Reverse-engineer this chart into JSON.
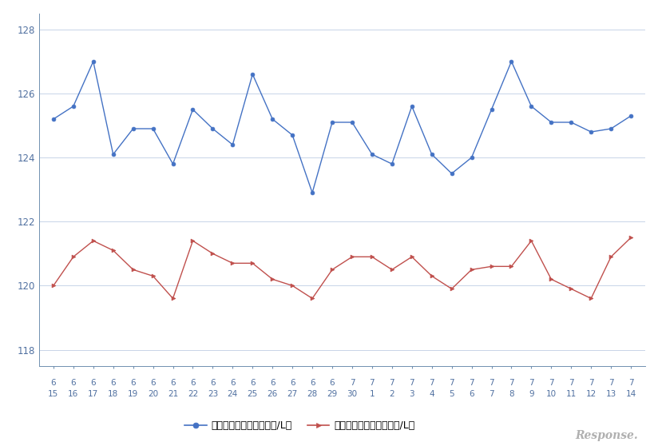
{
  "x_labels_top": [
    "6",
    "6",
    "6",
    "6",
    "6",
    "6",
    "6",
    "6",
    "6",
    "6",
    "6",
    "6",
    "6",
    "6",
    "6",
    "7",
    "7",
    "7",
    "7",
    "7",
    "7",
    "7",
    "7",
    "7",
    "7",
    "7",
    "7",
    "7",
    "7",
    "7"
  ],
  "x_labels_bottom": [
    "15",
    "16",
    "17",
    "18",
    "19",
    "20",
    "21",
    "22",
    "23",
    "24",
    "25",
    "26",
    "27",
    "28",
    "29",
    "30",
    "1",
    "2",
    "3",
    "4",
    "5",
    "6",
    "7",
    "8",
    "9",
    "10",
    "11",
    "12",
    "13",
    "14"
  ],
  "blue_values": [
    125.2,
    125.6,
    127.0,
    124.1,
    124.9,
    124.9,
    123.8,
    125.5,
    124.9,
    124.4,
    126.6,
    125.2,
    124.7,
    122.9,
    125.1,
    125.1,
    124.1,
    123.8,
    125.6,
    124.1,
    123.5,
    124.0,
    125.5,
    127.0,
    125.6,
    125.1,
    125.1,
    124.8,
    124.9,
    125.3
  ],
  "red_values": [
    120.0,
    120.9,
    121.4,
    121.1,
    120.5,
    120.3,
    119.6,
    121.4,
    121.0,
    120.7,
    120.7,
    120.2,
    120.0,
    119.6,
    120.5,
    120.9,
    120.9,
    120.5,
    120.9,
    120.3,
    119.9,
    120.5,
    120.6,
    120.6,
    121.4,
    120.2,
    119.9,
    119.6,
    120.9,
    121.5
  ],
  "ylim": [
    117.5,
    128.5
  ],
  "yticks": [
    118,
    120,
    122,
    124,
    126,
    128
  ],
  "blue_color": "#4472C4",
  "red_color": "#C0504D",
  "blue_label": "レギュラー看板価格（円/L）",
  "red_label": "レギュラー実売価格（円/L）",
  "bg_color": "#ffffff",
  "grid_color": "#c8d4e8",
  "axis_color": "#7090b0",
  "tick_label_color": "#5070a0",
  "watermark": "Response.",
  "figsize": [
    8.24,
    5.58
  ],
  "dpi": 100
}
